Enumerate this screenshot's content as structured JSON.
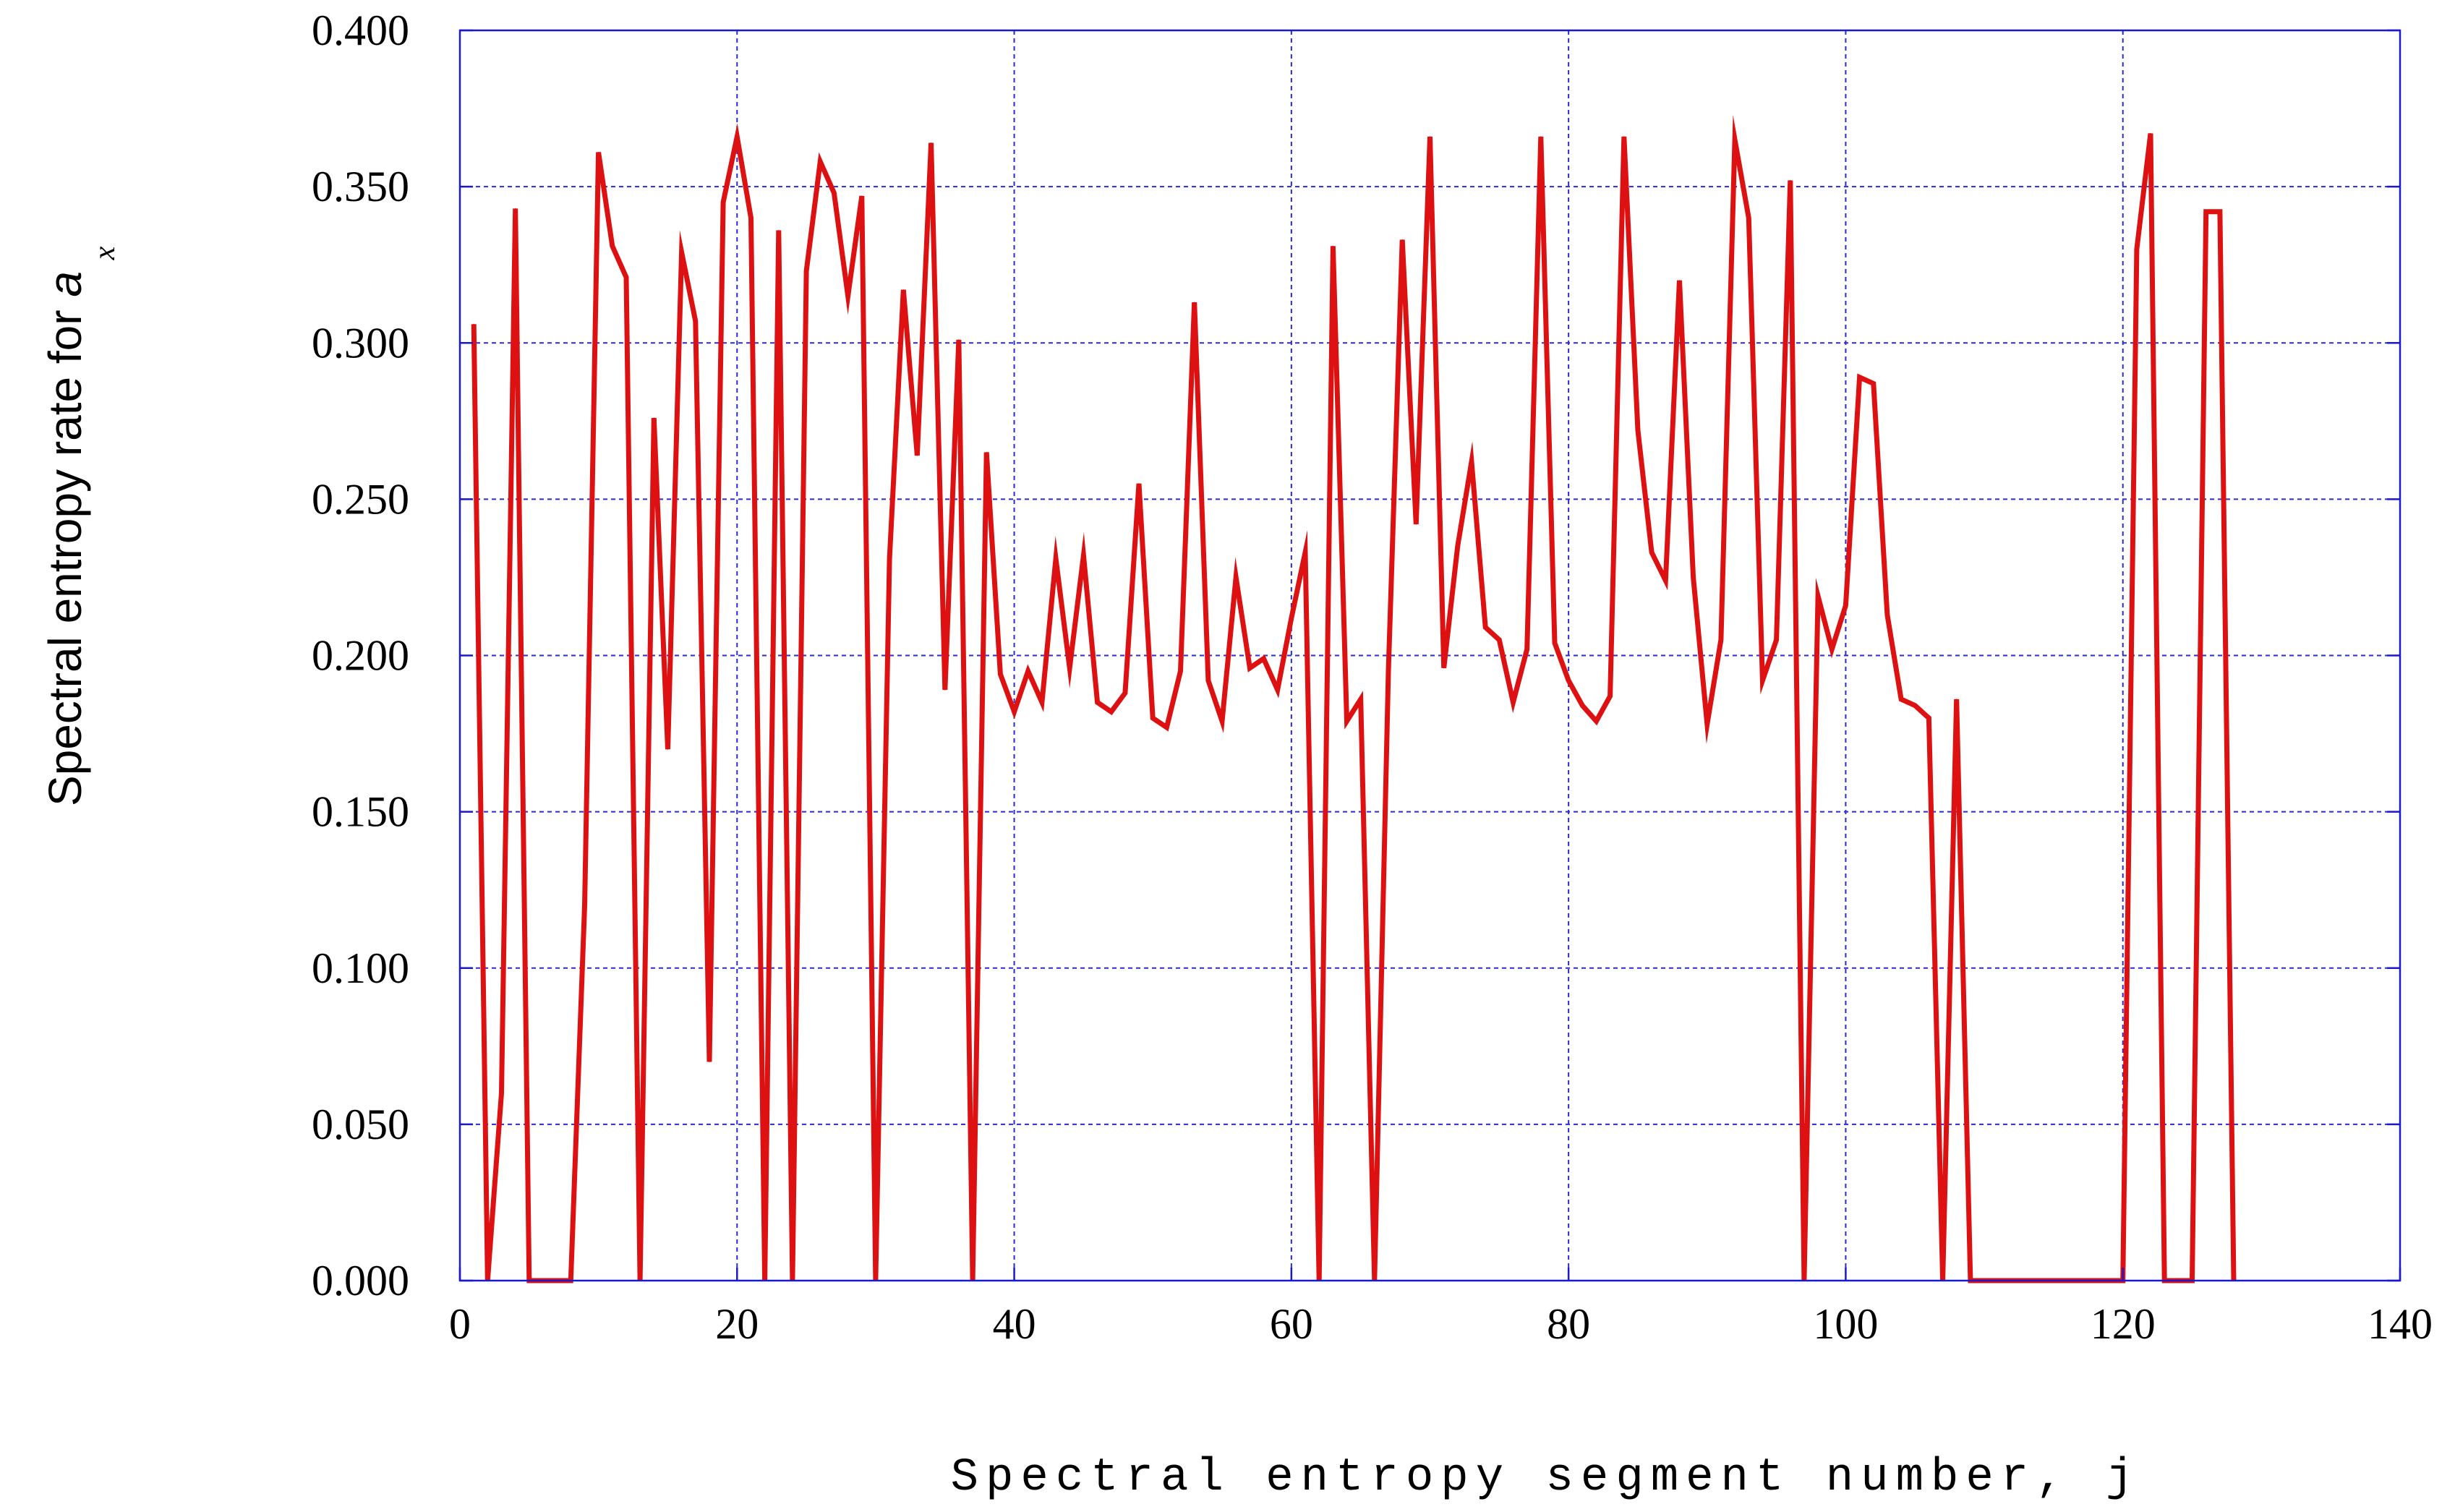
{
  "chart_data": {
    "type": "line",
    "xlabel": "Spectral entropy segment number, j",
    "ylabel": "Spectral entropy rate for a",
    "ylabel_var": "a",
    "ylabel_prefix": "Spectral entropy rate for ",
    "ylabel_sub": "x",
    "xlim": [
      0,
      140
    ],
    "ylim": [
      0.0,
      0.4
    ],
    "x_ticks": [
      "0",
      "20",
      "40",
      "60",
      "80",
      "100",
      "120",
      "140"
    ],
    "y_ticks": [
      "0.000",
      "0.050",
      "0.100",
      "0.150",
      "0.200",
      "0.250",
      "0.300",
      "0.350",
      "0.400"
    ],
    "grid": true,
    "colors": {
      "line": "#dd1111",
      "frame": "#1a1acc",
      "grid": "#2b2bd6"
    },
    "series": [
      {
        "x": [
          1,
          2,
          3,
          4,
          5,
          6,
          7,
          8,
          9,
          10,
          11,
          12,
          13,
          14,
          15,
          16,
          17,
          18,
          19,
          20,
          21,
          22,
          23,
          24,
          25,
          26,
          27,
          28,
          29,
          30,
          31,
          32,
          33,
          34,
          35,
          36,
          37,
          38,
          39,
          40,
          41,
          42,
          43,
          44,
          45,
          46,
          47,
          48,
          49,
          50,
          51,
          52,
          53,
          54,
          55,
          56,
          57,
          58,
          59,
          60,
          61,
          62,
          63,
          64,
          65,
          66,
          67,
          68,
          69,
          70,
          71,
          72,
          73,
          74,
          75,
          76,
          77,
          78,
          79,
          80,
          81,
          82,
          83,
          84,
          85,
          86,
          87,
          88,
          89,
          90,
          91,
          92,
          93,
          94,
          95,
          96,
          97,
          98,
          99,
          100,
          101,
          102,
          103,
          104,
          105,
          106,
          107,
          108,
          109,
          110,
          111,
          112,
          113,
          114,
          115,
          116,
          117,
          118,
          119,
          120,
          121,
          122,
          123,
          124,
          125,
          126,
          127,
          128
        ],
        "y": [
          0.306,
          0.0,
          0.06,
          0.343,
          0.0,
          0.0,
          0.0,
          0.0,
          0.12,
          0.361,
          0.331,
          0.321,
          0.0,
          0.276,
          0.17,
          0.329,
          0.307,
          0.07,
          0.345,
          0.366,
          0.34,
          0.0,
          0.336,
          0.0,
          0.323,
          0.358,
          0.348,
          0.315,
          0.347,
          0.0,
          0.231,
          0.317,
          0.264,
          0.364,
          0.189,
          0.301,
          0.0,
          0.265,
          0.194,
          0.182,
          0.195,
          0.185,
          0.231,
          0.196,
          0.232,
          0.185,
          0.182,
          0.188,
          0.255,
          0.18,
          0.177,
          0.195,
          0.313,
          0.192,
          0.179,
          0.225,
          0.196,
          0.199,
          0.189,
          0.212,
          0.233,
          0.0,
          0.331,
          0.179,
          0.186,
          0.0,
          0.195,
          0.333,
          0.242,
          0.366,
          0.196,
          0.235,
          0.262,
          0.209,
          0.205,
          0.185,
          0.202,
          0.366,
          0.204,
          0.192,
          0.184,
          0.179,
          0.187,
          0.366,
          0.272,
          0.233,
          0.224,
          0.32,
          0.225,
          0.178,
          0.205,
          0.365,
          0.34,
          0.192,
          0.205,
          0.352,
          0.0,
          0.219,
          0.202,
          0.216,
          0.289,
          0.287,
          0.213,
          0.186,
          0.184,
          0.18,
          0.0,
          0.186,
          0.0,
          0.0,
          0.0,
          0.0,
          0.0,
          0.0,
          0.0,
          0.0,
          0.0,
          0.0,
          0.0,
          0.0,
          0.33,
          0.367,
          0.0,
          0.0,
          0.0,
          0.342,
          0.342,
          0.0
        ]
      }
    ]
  }
}
